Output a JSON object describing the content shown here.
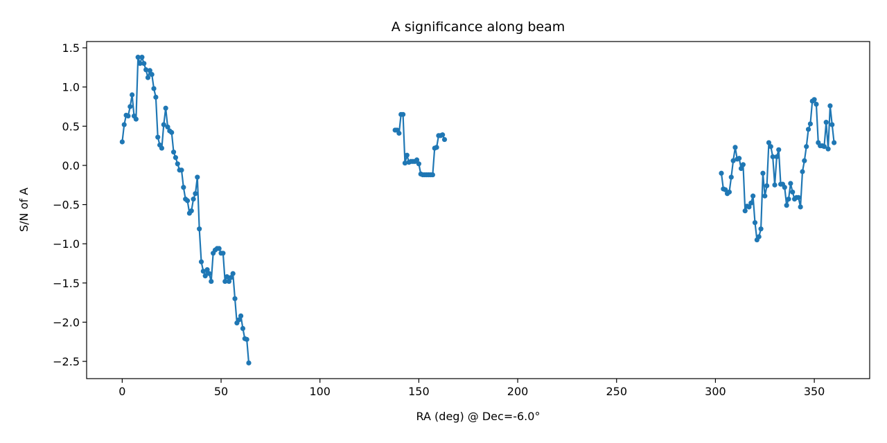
{
  "chart_data": {
    "type": "line",
    "title": "A significance along beam",
    "xlabel": "RA (deg) @ Dec=-6.0°",
    "ylabel": "S/N of A",
    "xlim": [
      -18,
      378
    ],
    "ylim": [
      -2.72,
      1.58
    ],
    "xticks": [
      0,
      50,
      100,
      150,
      200,
      250,
      300,
      350
    ],
    "yticks": [
      -2.5,
      -2.0,
      -1.5,
      -1.0,
      -0.5,
      0.0,
      0.5,
      1.0,
      1.5
    ],
    "ytick_labels": [
      "−2.5",
      "−2.0",
      "−1.5",
      "−1.0",
      "−0.5",
      "0.0",
      "0.5",
      "1.0",
      "1.5"
    ],
    "grid": false,
    "color": "#1f77b4",
    "marker": "circle",
    "series": [
      {
        "segments": [
          [
            [
              0,
              0.3
            ],
            [
              1,
              0.52
            ],
            [
              2,
              0.64
            ],
            [
              3,
              0.63
            ],
            [
              4,
              0.75
            ],
            [
              5,
              0.9
            ],
            [
              6,
              0.63
            ],
            [
              7,
              0.59
            ],
            [
              8,
              1.38
            ],
            [
              9,
              1.3
            ],
            [
              10,
              1.38
            ],
            [
              11,
              1.3
            ],
            [
              12,
              1.22
            ],
            [
              13,
              1.12
            ],
            [
              14,
              1.21
            ],
            [
              15,
              1.16
            ],
            [
              16,
              0.98
            ],
            [
              17,
              0.87
            ],
            [
              18,
              0.36
            ],
            [
              19,
              0.26
            ],
            [
              20,
              0.22
            ],
            [
              21,
              0.52
            ],
            [
              22,
              0.73
            ],
            [
              23,
              0.49
            ],
            [
              24,
              0.44
            ],
            [
              25,
              0.42
            ],
            [
              26,
              0.17
            ],
            [
              27,
              0.1
            ],
            [
              28,
              0.02
            ],
            [
              29,
              -0.06
            ],
            [
              30,
              -0.06
            ],
            [
              31,
              -0.28
            ],
            [
              32,
              -0.43
            ],
            [
              33,
              -0.45
            ],
            [
              34,
              -0.61
            ],
            [
              35,
              -0.58
            ],
            [
              36,
              -0.43
            ],
            [
              37,
              -0.36
            ],
            [
              38,
              -0.15
            ],
            [
              39,
              -0.81
            ],
            [
              40,
              -1.23
            ],
            [
              41,
              -1.35
            ],
            [
              42,
              -1.41
            ],
            [
              43,
              -1.33
            ],
            [
              44,
              -1.38
            ],
            [
              45,
              -1.48
            ],
            [
              46,
              -1.12
            ],
            [
              47,
              -1.08
            ],
            [
              48,
              -1.06
            ],
            [
              49,
              -1.06
            ],
            [
              50,
              -1.12
            ],
            [
              51,
              -1.12
            ],
            [
              52,
              -1.48
            ],
            [
              53,
              -1.42
            ],
            [
              54,
              -1.48
            ],
            [
              55,
              -1.43
            ],
            [
              56,
              -1.38
            ],
            [
              57,
              -1.7
            ],
            [
              58,
              -2.01
            ],
            [
              59,
              -1.97
            ],
            [
              60,
              -1.92
            ],
            [
              61,
              -2.08
            ],
            [
              62,
              -2.21
            ],
            [
              63,
              -2.22
            ],
            [
              64,
              -2.52
            ]
          ],
          [
            [
              138,
              0.45
            ],
            [
              139,
              0.45
            ],
            [
              140,
              0.41
            ],
            [
              141,
              0.65
            ],
            [
              142,
              0.65
            ],
            [
              143,
              0.03
            ],
            [
              144,
              0.13
            ],
            [
              145,
              0.04
            ],
            [
              146,
              0.05
            ],
            [
              147,
              0.05
            ],
            [
              148,
              0.05
            ],
            [
              149,
              0.07
            ],
            [
              150,
              0.02
            ],
            [
              151,
              -0.11
            ],
            [
              152,
              -0.12
            ],
            [
              153,
              -0.12
            ],
            [
              154,
              -0.12
            ],
            [
              155,
              -0.12
            ],
            [
              156,
              -0.12
            ],
            [
              157,
              -0.12
            ],
            [
              158,
              0.22
            ],
            [
              159,
              0.23
            ],
            [
              160,
              0.38
            ],
            [
              161,
              0.38
            ],
            [
              162,
              0.39
            ],
            [
              163,
              0.33
            ]
          ],
          [
            [
              303,
              -0.1
            ],
            [
              304,
              -0.3
            ],
            [
              305,
              -0.31
            ],
            [
              306,
              -0.36
            ],
            [
              307,
              -0.34
            ],
            [
              308,
              -0.15
            ],
            [
              309,
              0.06
            ],
            [
              310,
              0.23
            ],
            [
              311,
              0.08
            ],
            [
              312,
              0.09
            ],
            [
              313,
              -0.04
            ],
            [
              314,
              0.01
            ],
            [
              315,
              -0.58
            ],
            [
              316,
              -0.52
            ],
            [
              317,
              -0.53
            ],
            [
              318,
              -0.48
            ],
            [
              319,
              -0.39
            ],
            [
              320,
              -0.73
            ],
            [
              321,
              -0.95
            ],
            [
              322,
              -0.91
            ],
            [
              323,
              -0.81
            ],
            [
              324,
              -0.1
            ],
            [
              325,
              -0.39
            ],
            [
              326,
              -0.26
            ],
            [
              327,
              0.29
            ],
            [
              328,
              0.24
            ],
            [
              329,
              0.11
            ],
            [
              330,
              -0.25
            ],
            [
              331,
              0.11
            ],
            [
              332,
              0.2
            ],
            [
              333,
              -0.24
            ],
            [
              334,
              -0.24
            ],
            [
              335,
              -0.28
            ],
            [
              336,
              -0.51
            ],
            [
              337,
              -0.43
            ],
            [
              338,
              -0.23
            ],
            [
              339,
              -0.34
            ],
            [
              340,
              -0.43
            ],
            [
              341,
              -0.41
            ],
            [
              342,
              -0.41
            ],
            [
              343,
              -0.53
            ],
            [
              344,
              -0.08
            ],
            [
              345,
              0.06
            ],
            [
              346,
              0.24
            ],
            [
              347,
              0.46
            ],
            [
              348,
              0.53
            ],
            [
              349,
              0.82
            ],
            [
              350,
              0.84
            ],
            [
              351,
              0.78
            ],
            [
              352,
              0.29
            ],
            [
              353,
              0.25
            ],
            [
              354,
              0.25
            ],
            [
              355,
              0.24
            ],
            [
              356,
              0.55
            ],
            [
              357,
              0.21
            ],
            [
              358,
              0.76
            ],
            [
              359,
              0.52
            ],
            [
              360,
              0.29
            ]
          ]
        ]
      }
    ]
  }
}
